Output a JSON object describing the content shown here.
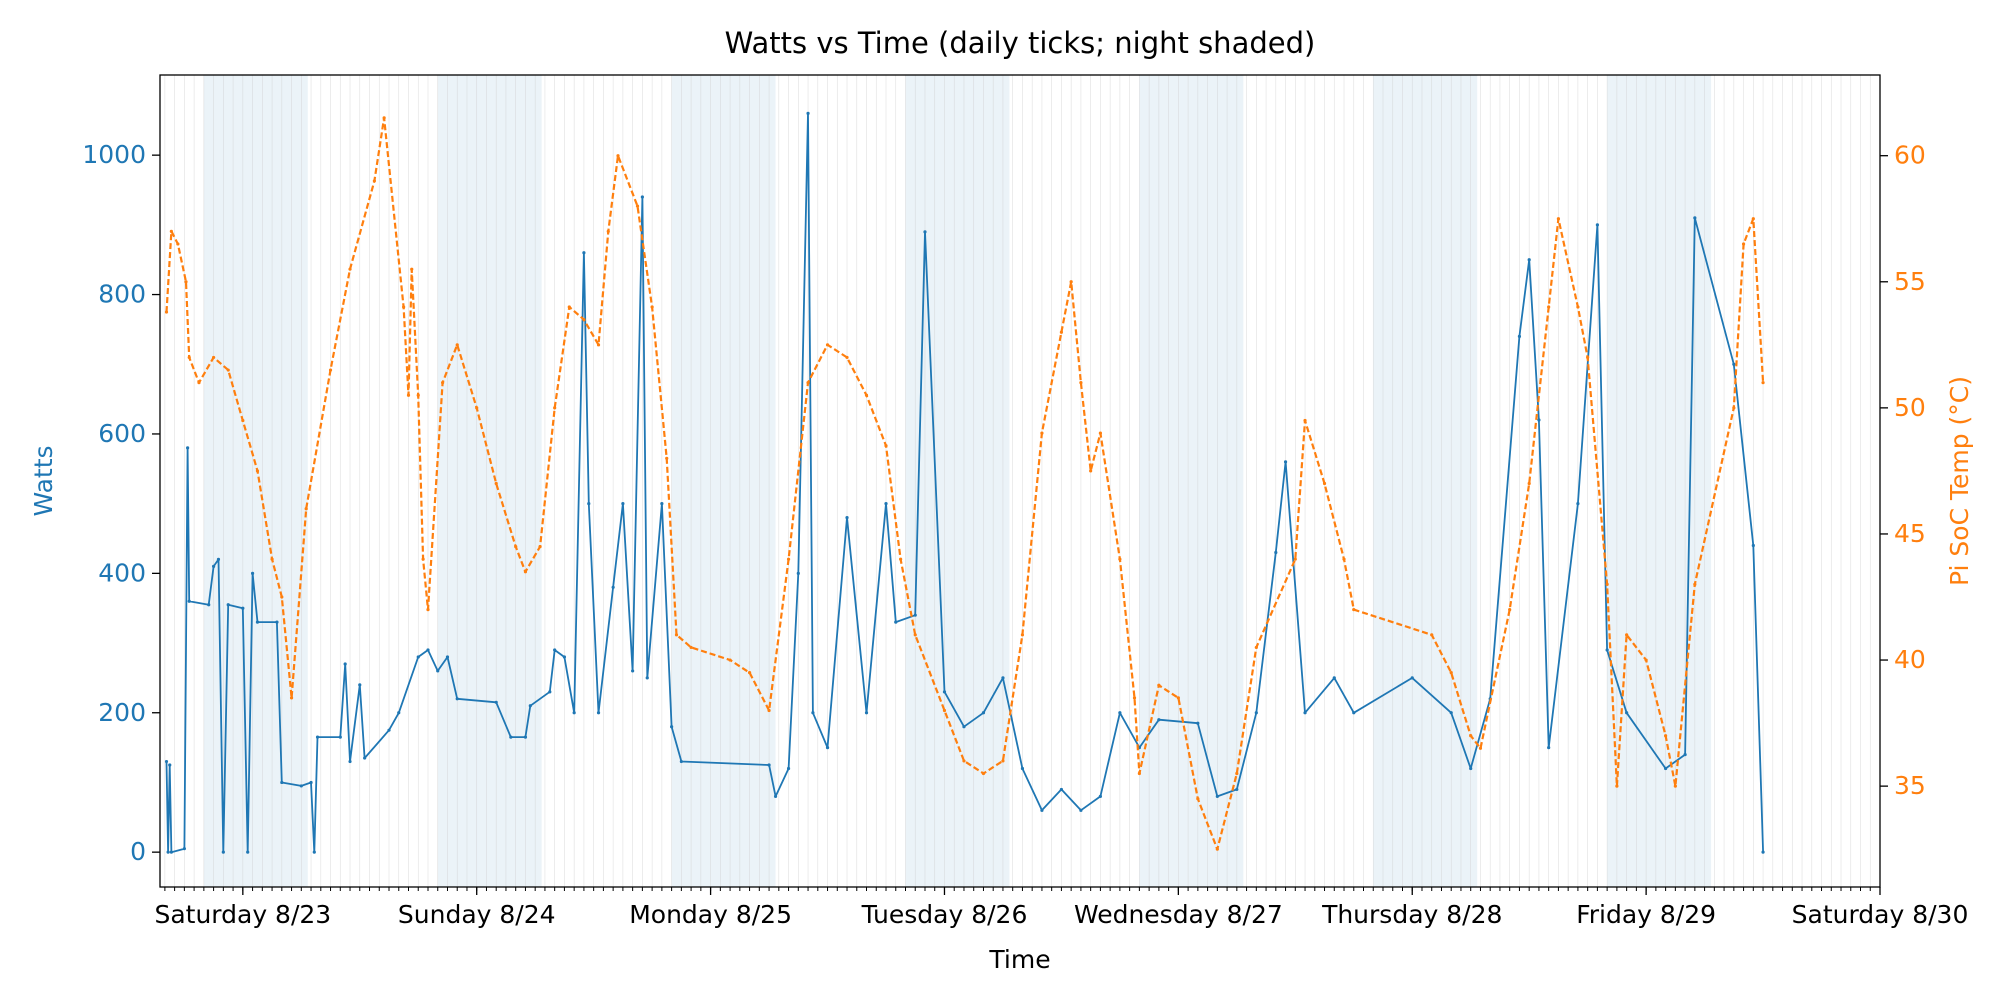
{
  "chart_data": {
    "type": "line",
    "title": "Watts vs Time (daily ticks; night shaded)",
    "xlabel": "Time",
    "x_ticks": [
      "Saturday 8/23",
      "Sunday 8/24",
      "Monday 8/25",
      "Tuesday 8/26",
      "Wednesday 8/27",
      "Thursday 8/28",
      "Friday 8/29",
      "Saturday 8/30"
    ],
    "x_range": [
      "2025-08-22 15:30",
      "2025-08-30 00:00"
    ],
    "minor_ticks": "hourly",
    "night_shading": [
      {
        "start": "2025-08-22 20:00",
        "end": "2025-08-23 06:40"
      },
      {
        "start": "2025-08-23 20:00",
        "end": "2025-08-24 06:40"
      },
      {
        "start": "2025-08-24 20:00",
        "end": "2025-08-25 06:40"
      },
      {
        "start": "2025-08-25 20:00",
        "end": "2025-08-26 06:40"
      },
      {
        "start": "2025-08-26 20:00",
        "end": "2025-08-27 06:40"
      },
      {
        "start": "2025-08-27 20:00",
        "end": "2025-08-28 06:40"
      },
      {
        "start": "2025-08-28 20:00",
        "end": "2025-08-29 06:40"
      }
    ],
    "left_axis": {
      "label": "Watts",
      "ticks": [
        0,
        200,
        400,
        600,
        800,
        1000
      ],
      "ylim": [
        -50,
        1115
      ],
      "color": "#1f77b4"
    },
    "right_axis": {
      "label": "Pi SoC Temp (°C)",
      "ticks": [
        35,
        40,
        45,
        50,
        55,
        60
      ],
      "ylim": [
        31.0,
        63.2
      ],
      "color": "#ff7f0e"
    },
    "grid": true,
    "series": [
      {
        "axis": "left",
        "color": "#1f77b4",
        "style": "solid",
        "points": [
          [
            "2025-08-22 16:10",
            130
          ],
          [
            "2025-08-22 16:20",
            0
          ],
          [
            "2025-08-22 16:30",
            125
          ],
          [
            "2025-08-22 16:40",
            0
          ],
          [
            "2025-08-22 18:00",
            5
          ],
          [
            "2025-08-22 18:20",
            580
          ],
          [
            "2025-08-22 18:30",
            360
          ],
          [
            "2025-08-22 20:30",
            355
          ],
          [
            "2025-08-22 21:00",
            410
          ],
          [
            "2025-08-22 21:30",
            420
          ],
          [
            "2025-08-22 22:00",
            0
          ],
          [
            "2025-08-22 22:30",
            355
          ],
          [
            "2025-08-23 00:00",
            350
          ],
          [
            "2025-08-23 00:30",
            0
          ],
          [
            "2025-08-23 01:00",
            400
          ],
          [
            "2025-08-23 01:30",
            330
          ],
          [
            "2025-08-23 03:30",
            330
          ],
          [
            "2025-08-23 04:00",
            100
          ],
          [
            "2025-08-23 06:00",
            95
          ],
          [
            "2025-08-23 07:00",
            100
          ],
          [
            "2025-08-23 07:20",
            0
          ],
          [
            "2025-08-23 07:40",
            165
          ],
          [
            "2025-08-23 10:00",
            165
          ],
          [
            "2025-08-23 10:30",
            270
          ],
          [
            "2025-08-23 11:00",
            130
          ],
          [
            "2025-08-23 12:00",
            240
          ],
          [
            "2025-08-23 12:30",
            135
          ],
          [
            "2025-08-23 15:00",
            175
          ],
          [
            "2025-08-23 16:00",
            200
          ],
          [
            "2025-08-23 18:00",
            280
          ],
          [
            "2025-08-23 19:00",
            290
          ],
          [
            "2025-08-23 20:00",
            260
          ],
          [
            "2025-08-23 21:00",
            280
          ],
          [
            "2025-08-23 22:00",
            220
          ],
          [
            "2025-08-24 02:00",
            215
          ],
          [
            "2025-08-24 03:30",
            165
          ],
          [
            "2025-08-24 05:00",
            165
          ],
          [
            "2025-08-24 05:30",
            210
          ],
          [
            "2025-08-24 07:30",
            230
          ],
          [
            "2025-08-24 08:00",
            290
          ],
          [
            "2025-08-24 09:00",
            280
          ],
          [
            "2025-08-24 10:00",
            200
          ],
          [
            "2025-08-24 11:00",
            860
          ],
          [
            "2025-08-24 11:30",
            500
          ],
          [
            "2025-08-24 12:30",
            200
          ],
          [
            "2025-08-24 14:00",
            380
          ],
          [
            "2025-08-24 15:00",
            500
          ],
          [
            "2025-08-24 16:00",
            260
          ],
          [
            "2025-08-24 17:00",
            940
          ],
          [
            "2025-08-24 17:30",
            250
          ],
          [
            "2025-08-24 19:00",
            500
          ],
          [
            "2025-08-24 20:00",
            180
          ],
          [
            "2025-08-24 21:00",
            130
          ],
          [
            "2025-08-25 06:00",
            125
          ],
          [
            "2025-08-25 06:40",
            80
          ],
          [
            "2025-08-25 08:00",
            120
          ],
          [
            "2025-08-25 09:00",
            400
          ],
          [
            "2025-08-25 10:00",
            1060
          ],
          [
            "2025-08-25 10:30",
            200
          ],
          [
            "2025-08-25 12:00",
            150
          ],
          [
            "2025-08-25 14:00",
            480
          ],
          [
            "2025-08-25 16:00",
            200
          ],
          [
            "2025-08-25 18:00",
            500
          ],
          [
            "2025-08-25 19:00",
            330
          ],
          [
            "2025-08-25 21:00",
            340
          ],
          [
            "2025-08-25 22:00",
            890
          ],
          [
            "2025-08-26 00:00",
            230
          ],
          [
            "2025-08-26 02:00",
            180
          ],
          [
            "2025-08-26 04:00",
            200
          ],
          [
            "2025-08-26 06:00",
            250
          ],
          [
            "2025-08-26 08:00",
            120
          ],
          [
            "2025-08-26 10:00",
            60
          ],
          [
            "2025-08-26 12:00",
            90
          ],
          [
            "2025-08-26 14:00",
            60
          ],
          [
            "2025-08-26 16:00",
            80
          ],
          [
            "2025-08-26 18:00",
            200
          ],
          [
            "2025-08-26 20:00",
            150
          ],
          [
            "2025-08-26 22:00",
            190
          ],
          [
            "2025-08-27 02:00",
            185
          ],
          [
            "2025-08-27 04:00",
            80
          ],
          [
            "2025-08-27 06:00",
            90
          ],
          [
            "2025-08-27 08:00",
            200
          ],
          [
            "2025-08-27 10:00",
            430
          ],
          [
            "2025-08-27 11:00",
            560
          ],
          [
            "2025-08-27 13:00",
            200
          ],
          [
            "2025-08-27 16:00",
            250
          ],
          [
            "2025-08-27 18:00",
            200
          ],
          [
            "2025-08-28 00:00",
            250
          ],
          [
            "2025-08-28 04:00",
            200
          ],
          [
            "2025-08-28 06:00",
            120
          ],
          [
            "2025-08-28 08:00",
            220
          ],
          [
            "2025-08-28 11:00",
            740
          ],
          [
            "2025-08-28 12:00",
            850
          ],
          [
            "2025-08-28 13:00",
            620
          ],
          [
            "2025-08-28 14:00",
            150
          ],
          [
            "2025-08-28 17:00",
            500
          ],
          [
            "2025-08-28 19:00",
            900
          ],
          [
            "2025-08-28 20:00",
            290
          ],
          [
            "2025-08-28 22:00",
            200
          ],
          [
            "2025-08-29 02:00",
            120
          ],
          [
            "2025-08-29 04:00",
            140
          ],
          [
            "2025-08-29 05:00",
            910
          ],
          [
            "2025-08-29 09:00",
            700
          ],
          [
            "2025-08-29 11:00",
            440
          ],
          [
            "2025-08-29 12:00",
            0
          ]
        ]
      },
      {
        "axis": "right",
        "color": "#ff7f0e",
        "style": "dashed",
        "points": [
          [
            "2025-08-22 16:10",
            53.8
          ],
          [
            "2025-08-22 16:40",
            57.0
          ],
          [
            "2025-08-22 17:20",
            56.5
          ],
          [
            "2025-08-22 18:10",
            55.0
          ],
          [
            "2025-08-22 18:30",
            52.0
          ],
          [
            "2025-08-22 19:30",
            51.0
          ],
          [
            "2025-08-22 21:00",
            52.0
          ],
          [
            "2025-08-22 22:30",
            51.5
          ],
          [
            "2025-08-23 00:00",
            49.5
          ],
          [
            "2025-08-23 01:30",
            47.5
          ],
          [
            "2025-08-23 03:00",
            44.0
          ],
          [
            "2025-08-23 04:00",
            42.5
          ],
          [
            "2025-08-23 05:00",
            38.5
          ],
          [
            "2025-08-23 06:30",
            46.0
          ],
          [
            "2025-08-23 09:00",
            51.5
          ],
          [
            "2025-08-23 11:00",
            55.5
          ],
          [
            "2025-08-23 13:30",
            59.0
          ],
          [
            "2025-08-23 14:30",
            61.5
          ],
          [
            "2025-08-23 16:30",
            54.0
          ],
          [
            "2025-08-23 17:00",
            50.5
          ],
          [
            "2025-08-23 17:20",
            55.5
          ],
          [
            "2025-08-23 18:00",
            50.5
          ],
          [
            "2025-08-23 18:30",
            44.0
          ],
          [
            "2025-08-23 19:00",
            42.0
          ],
          [
            "2025-08-23 20:30",
            51.0
          ],
          [
            "2025-08-23 22:00",
            52.5
          ],
          [
            "2025-08-24 00:00",
            50.0
          ],
          [
            "2025-08-24 02:00",
            47.0
          ],
          [
            "2025-08-24 04:00",
            44.5
          ],
          [
            "2025-08-24 05:00",
            43.5
          ],
          [
            "2025-08-24 06:30",
            44.5
          ],
          [
            "2025-08-24 08:00",
            50.0
          ],
          [
            "2025-08-24 09:30",
            54.0
          ],
          [
            "2025-08-24 11:00",
            53.5
          ],
          [
            "2025-08-24 12:30",
            52.5
          ],
          [
            "2025-08-24 13:30",
            57.0
          ],
          [
            "2025-08-24 14:30",
            60.0
          ],
          [
            "2025-08-24 16:30",
            58.0
          ],
          [
            "2025-08-24 18:00",
            54.0
          ],
          [
            "2025-08-24 19:30",
            48.0
          ],
          [
            "2025-08-24 20:30",
            41.0
          ],
          [
            "2025-08-24 22:00",
            40.5
          ],
          [
            "2025-08-25 02:00",
            40.0
          ],
          [
            "2025-08-25 04:00",
            39.5
          ],
          [
            "2025-08-25 06:00",
            38.0
          ],
          [
            "2025-08-25 08:00",
            44.0
          ],
          [
            "2025-08-25 10:00",
            51.0
          ],
          [
            "2025-08-25 12:00",
            52.5
          ],
          [
            "2025-08-25 14:00",
            52.0
          ],
          [
            "2025-08-25 16:00",
            50.5
          ],
          [
            "2025-08-25 18:00",
            48.5
          ],
          [
            "2025-08-25 19:30",
            44.0
          ],
          [
            "2025-08-25 21:00",
            41.0
          ],
          [
            "2025-08-26 00:00",
            38.0
          ],
          [
            "2025-08-26 02:00",
            36.0
          ],
          [
            "2025-08-26 04:00",
            35.5
          ],
          [
            "2025-08-26 06:00",
            36.0
          ],
          [
            "2025-08-26 08:00",
            41.0
          ],
          [
            "2025-08-26 10:00",
            49.0
          ],
          [
            "2025-08-26 12:00",
            53.0
          ],
          [
            "2025-08-26 13:00",
            55.0
          ],
          [
            "2025-08-26 14:00",
            51.0
          ],
          [
            "2025-08-26 15:00",
            47.5
          ],
          [
            "2025-08-26 16:00",
            49.0
          ],
          [
            "2025-08-26 18:00",
            44.0
          ],
          [
            "2025-08-26 19:30",
            38.5
          ],
          [
            "2025-08-26 20:00",
            35.5
          ],
          [
            "2025-08-26 22:00",
            39.0
          ],
          [
            "2025-08-27 00:00",
            38.5
          ],
          [
            "2025-08-27 02:00",
            34.5
          ],
          [
            "2025-08-27 04:00",
            32.5
          ],
          [
            "2025-08-27 06:00",
            35.5
          ],
          [
            "2025-08-27 08:00",
            40.5
          ],
          [
            "2025-08-27 12:00",
            44.0
          ],
          [
            "2025-08-27 13:00",
            49.5
          ],
          [
            "2025-08-27 15:00",
            47.0
          ],
          [
            "2025-08-27 17:00",
            44.0
          ],
          [
            "2025-08-27 18:00",
            42.0
          ],
          [
            "2025-08-28 02:00",
            41.0
          ],
          [
            "2025-08-28 04:00",
            39.5
          ],
          [
            "2025-08-28 06:00",
            37.0
          ],
          [
            "2025-08-28 07:00",
            36.5
          ],
          [
            "2025-08-28 10:00",
            42.0
          ],
          [
            "2025-08-28 12:00",
            47.0
          ],
          [
            "2025-08-28 14:00",
            54.0
          ],
          [
            "2025-08-28 15:00",
            57.5
          ],
          [
            "2025-08-28 17:00",
            54.0
          ],
          [
            "2025-08-28 18:00",
            52.0
          ],
          [
            "2025-08-28 20:00",
            43.0
          ],
          [
            "2025-08-28 21:00",
            35.0
          ],
          [
            "2025-08-28 22:00",
            41.0
          ],
          [
            "2025-08-29 00:00",
            40.0
          ],
          [
            "2025-08-29 02:00",
            37.0
          ],
          [
            "2025-08-29 03:00",
            35.0
          ],
          [
            "2025-08-29 05:00",
            43.0
          ],
          [
            "2025-08-29 09:00",
            50.0
          ],
          [
            "2025-08-29 10:00",
            56.5
          ],
          [
            "2025-08-29 11:00",
            57.5
          ],
          [
            "2025-08-29 12:00",
            51.0
          ]
        ]
      }
    ]
  }
}
